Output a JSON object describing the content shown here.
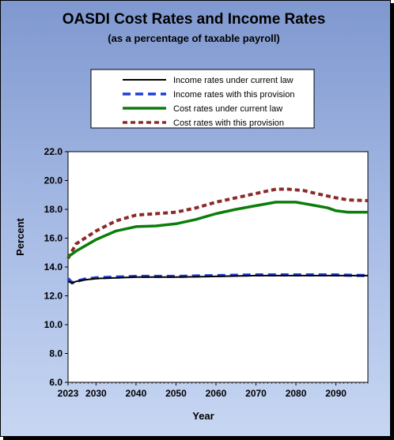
{
  "chart_data": {
    "type": "line",
    "title": "OASDI Cost Rates and Income Rates",
    "subtitle": "(as a percentage of taxable payroll)",
    "xlabel": "Year",
    "ylabel": "Percent",
    "xlim": [
      2023,
      2098
    ],
    "ylim": [
      6.0,
      22.0
    ],
    "x_ticks": [
      "2023",
      "2030",
      "2040",
      "2050",
      "2060",
      "2070",
      "2080",
      "2090"
    ],
    "y_ticks": [
      "6.0",
      "8.0",
      "10.0",
      "12.0",
      "14.0",
      "16.0",
      "18.0",
      "20.0",
      "22.0"
    ],
    "grid": false,
    "legend_position": "top",
    "series": [
      {
        "name": "Income rates under current law",
        "color": "#000000",
        "style": "solid",
        "x": [
          2023,
          2024,
          2025,
          2027,
          2030,
          2035,
          2040,
          2050,
          2060,
          2070,
          2080,
          2090,
          2098
        ],
        "y": [
          13.0,
          12.9,
          13.0,
          13.1,
          13.2,
          13.25,
          13.3,
          13.3,
          13.35,
          13.4,
          13.4,
          13.4,
          13.4
        ]
      },
      {
        "name": "Income rates with this provision",
        "color": "#1f3fd6",
        "style": "dashed",
        "x": [
          2023,
          2024,
          2025,
          2027,
          2030,
          2035,
          2040,
          2050,
          2060,
          2070,
          2080,
          2090,
          2098
        ],
        "y": [
          13.2,
          12.9,
          13.0,
          13.15,
          13.25,
          13.3,
          13.35,
          13.35,
          13.4,
          13.45,
          13.45,
          13.45,
          13.4
        ]
      },
      {
        "name": "Cost rates under current law",
        "color": "#0a7d0a",
        "style": "solid",
        "x": [
          2023,
          2025,
          2030,
          2035,
          2040,
          2045,
          2050,
          2055,
          2060,
          2065,
          2070,
          2075,
          2080,
          2085,
          2088,
          2090,
          2093,
          2098
        ],
        "y": [
          14.7,
          15.1,
          15.9,
          16.5,
          16.8,
          16.85,
          17.0,
          17.3,
          17.7,
          18.0,
          18.25,
          18.5,
          18.5,
          18.25,
          18.1,
          17.9,
          17.8,
          17.8
        ]
      },
      {
        "name": "Cost rates with this provision",
        "color": "#8b2a2a",
        "style": "dashed",
        "x": [
          2023,
          2025,
          2030,
          2035,
          2040,
          2045,
          2050,
          2055,
          2060,
          2065,
          2070,
          2075,
          2078,
          2082,
          2085,
          2090,
          2093,
          2098
        ],
        "y": [
          14.6,
          15.6,
          16.5,
          17.2,
          17.6,
          17.7,
          17.8,
          18.1,
          18.5,
          18.8,
          19.1,
          19.4,
          19.4,
          19.3,
          19.1,
          18.8,
          18.65,
          18.6
        ]
      }
    ]
  }
}
